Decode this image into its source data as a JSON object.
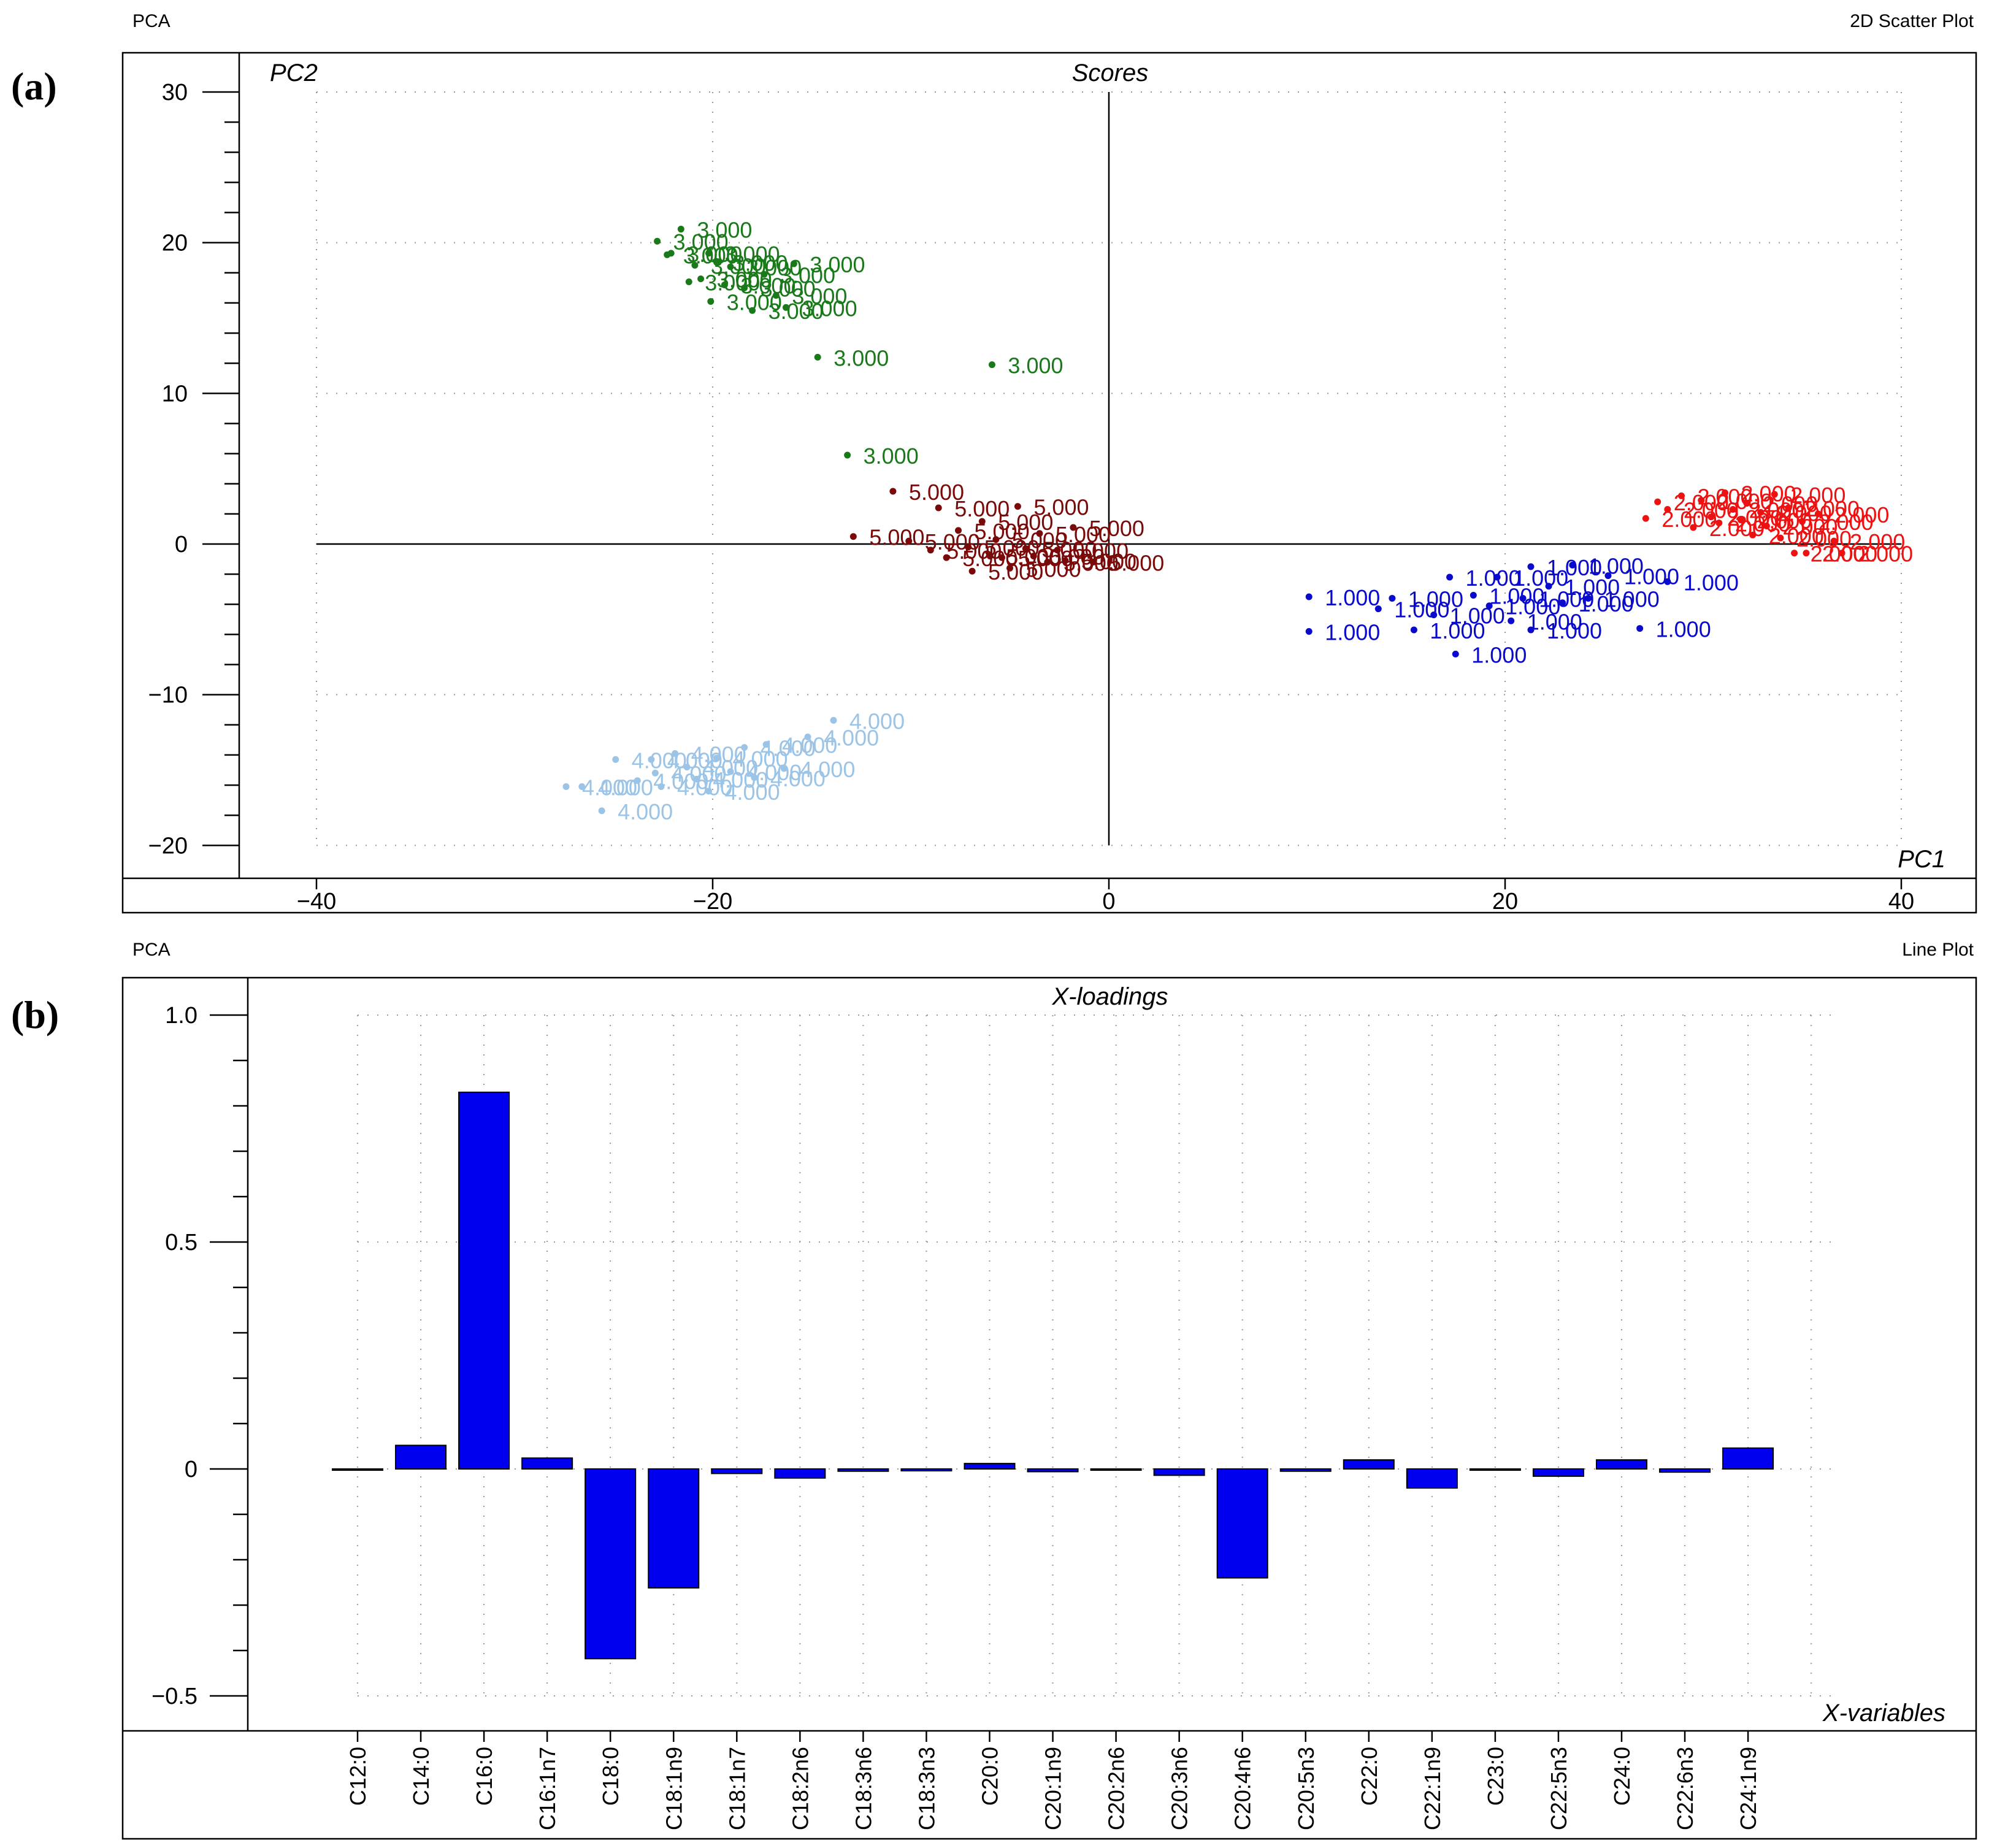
{
  "panels": {
    "a": {
      "letter": "(a)",
      "header_left": "PCA",
      "header_right": "2D Scatter Plot",
      "title": "Scores",
      "x_axis_name": "PC1",
      "y_axis_name": "PC2"
    },
    "b": {
      "letter": "(b)",
      "header_left": "PCA",
      "header_right": "Line Plot",
      "title": "X-loadings",
      "x_axis_name": "X-variables"
    }
  },
  "chart_data": [
    {
      "type": "scatter",
      "title": "Scores",
      "xlabel": "PC1",
      "ylabel": "PC2",
      "xlim": [
        -44,
        41
      ],
      "ylim": [
        -22,
        32
      ],
      "xticks": [
        -40,
        -20,
        0,
        20,
        40
      ],
      "yticks": [
        -20,
        -10,
        0,
        10,
        20,
        30
      ],
      "xtick_labels": [
        "−40",
        "−20",
        "0",
        "20",
        "40"
      ],
      "ytick_labels": [
        "−20",
        "−10",
        "0",
        "10",
        "20",
        "30"
      ],
      "series": [
        {
          "name": "1.000",
          "label": "1.000",
          "color": "#0a0acc",
          "points": [
            [
              10.1,
              -3.5
            ],
            [
              10.1,
              -5.8
            ],
            [
              13.6,
              -4.3
            ],
            [
              14.3,
              -3.6
            ],
            [
              15.4,
              -5.7
            ],
            [
              16.4,
              -4.7
            ],
            [
              17.2,
              -2.2
            ],
            [
              17.5,
              -7.3
            ],
            [
              18.4,
              -3.4
            ],
            [
              19.2,
              -4.1
            ],
            [
              19.6,
              -2.2
            ],
            [
              20.3,
              -5.1
            ],
            [
              20.9,
              -3.6
            ],
            [
              21.3,
              -1.5
            ],
            [
              21.3,
              -5.7
            ],
            [
              22.2,
              -2.8
            ],
            [
              22.9,
              -3.9
            ],
            [
              23.4,
              -1.4
            ],
            [
              24.2,
              -3.6
            ],
            [
              25.2,
              -2.1
            ],
            [
              26.8,
              -5.6
            ],
            [
              28.2,
              -2.5
            ]
          ]
        },
        {
          "name": "2.000",
          "label": "2.000",
          "color": "#ee1111",
          "points": [
            [
              27.1,
              1.7
            ],
            [
              27.7,
              2.8
            ],
            [
              28.2,
              2.3
            ],
            [
              28.9,
              3.2
            ],
            [
              29.5,
              1.1
            ],
            [
              29.9,
              2.9
            ],
            [
              30.4,
              1.8
            ],
            [
              30.8,
              1.4
            ],
            [
              31.1,
              3.4
            ],
            [
              31.5,
              2.3
            ],
            [
              31.9,
              1.6
            ],
            [
              32.2,
              2.7
            ],
            [
              32.5,
              0.6
            ],
            [
              32.9,
              2.1
            ],
            [
              33.2,
              1.2
            ],
            [
              33.6,
              3.3
            ],
            [
              33.9,
              0.4
            ],
            [
              34.3,
              2.4
            ],
            [
              34.6,
              -0.6
            ],
            [
              35.0,
              1.5
            ],
            [
              35.2,
              -0.6
            ],
            [
              35.8,
              2.0
            ],
            [
              36.6,
              0.2
            ],
            [
              37.0,
              -0.6
            ]
          ]
        },
        {
          "name": "3.000",
          "label": "3.000",
          "color": "#1a7a1a",
          "points": [
            [
              -22.8,
              20.1
            ],
            [
              -22.3,
              19.2
            ],
            [
              -22.1,
              19.3
            ],
            [
              -21.6,
              20.9
            ],
            [
              -21.2,
              17.4
            ],
            [
              -20.9,
              18.5
            ],
            [
              -20.6,
              17.6
            ],
            [
              -20.2,
              19.3
            ],
            [
              -20.1,
              16.1
            ],
            [
              -19.8,
              18.7
            ],
            [
              -19.4,
              17.2
            ],
            [
              -19.1,
              18.4
            ],
            [
              -18.4,
              17.0
            ],
            [
              -18.0,
              15.5
            ],
            [
              -17.4,
              17.9
            ],
            [
              -16.8,
              16.5
            ],
            [
              -16.3,
              15.7
            ],
            [
              -15.9,
              18.6
            ],
            [
              -14.7,
              12.4
            ],
            [
              -13.2,
              5.9
            ],
            [
              -5.9,
              11.9
            ]
          ]
        },
        {
          "name": "4.000",
          "label": "4.000",
          "color": "#9cc4e6",
          "points": [
            [
              -27.4,
              -16.1
            ],
            [
              -26.6,
              -16.1
            ],
            [
              -25.6,
              -17.7
            ],
            [
              -24.9,
              -14.3
            ],
            [
              -23.8,
              -15.7
            ],
            [
              -23.1,
              -14.3
            ],
            [
              -22.9,
              -15.2
            ],
            [
              -22.6,
              -16.1
            ],
            [
              -21.9,
              -13.9
            ],
            [
              -21.3,
              -14.8
            ],
            [
              -20.8,
              -15.6
            ],
            [
              -20.2,
              -16.4
            ],
            [
              -19.8,
              -14.2
            ],
            [
              -19.1,
              -15.1
            ],
            [
              -18.4,
              -13.5
            ],
            [
              -17.9,
              -15.5
            ],
            [
              -17.3,
              -13.3
            ],
            [
              -16.4,
              -14.9
            ],
            [
              -15.2,
              -12.8
            ],
            [
              -13.9,
              -11.7
            ]
          ]
        },
        {
          "name": "5.000",
          "label": "5.000",
          "color": "#7a0a0a",
          "points": [
            [
              -12.9,
              0.5
            ],
            [
              -10.9,
              3.5
            ],
            [
              -10.1,
              0.2
            ],
            [
              -9.0,
              -0.4
            ],
            [
              -8.6,
              2.4
            ],
            [
              -8.2,
              -0.9
            ],
            [
              -7.6,
              0.9
            ],
            [
              -7.1,
              -0.2
            ],
            [
              -6.9,
              -1.8
            ],
            [
              -6.4,
              1.5
            ],
            [
              -6.0,
              -0.8
            ],
            [
              -5.7,
              0.3
            ],
            [
              -5.4,
              -0.9
            ],
            [
              -5.0,
              -1.6
            ],
            [
              -4.6,
              2.5
            ],
            [
              -4.2,
              -0.3
            ],
            [
              -3.8,
              -0.8
            ],
            [
              -3.5,
              0.7
            ],
            [
              -3.1,
              -1.2
            ],
            [
              -2.6,
              -0.4
            ],
            [
              -2.2,
              -1.1
            ],
            [
              -1.8,
              1.1
            ],
            [
              -0.8,
              -1.2
            ]
          ]
        }
      ]
    },
    {
      "type": "bar",
      "title": "X-loadings",
      "xlabel": "X-variables",
      "ylabel": "",
      "ylim": [
        -0.6,
        1.1
      ],
      "yticks": [
        -0.5,
        0,
        0.5,
        1.0
      ],
      "ytick_labels": [
        "−0.5",
        "0",
        "0.5",
        "1.0"
      ],
      "bar_color": "#0000ee",
      "categories": [
        "C12:0",
        "C14:0",
        "C16:0",
        "C16:1n7",
        "C18:0",
        "C18:1n9",
        "C18:1n7",
        "C18:2n6",
        "C18:3n6",
        "C18:3n3",
        "C20:0",
        "C20:1n9",
        "C20:2n6",
        "C20:3n6",
        "C20:4n6",
        "C20:5n3",
        "C22:0",
        "C22:1n9",
        "C23:0",
        "C22:5n3",
        "C24:0",
        "C22:6n3",
        "C24:1n9"
      ],
      "values": [
        -0.002,
        0.052,
        0.83,
        0.024,
        -0.418,
        -0.262,
        -0.01,
        -0.02,
        -0.005,
        -0.004,
        0.012,
        -0.006,
        -0.002,
        -0.014,
        -0.24,
        -0.005,
        0.02,
        -0.042,
        -0.002,
        -0.016,
        0.02,
        -0.007,
        0.046
      ]
    }
  ]
}
